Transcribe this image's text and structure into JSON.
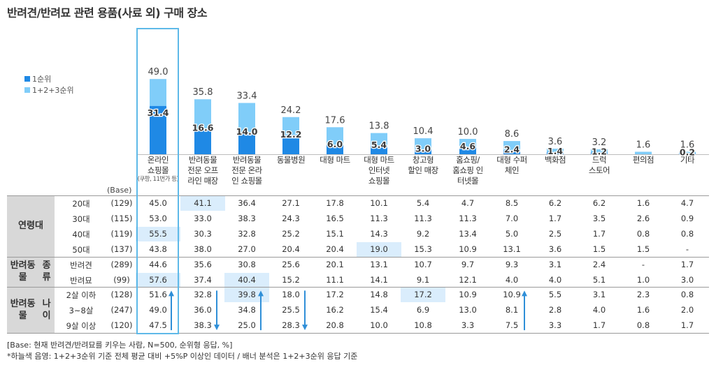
{
  "title": "반려견/반려묘 관련 용품(사료 외) 구매 장소",
  "legend": [
    {
      "label": "1순위",
      "color": "#1f89e5"
    },
    {
      "label": "1+2+3순위",
      "color": "#80cdf9"
    }
  ],
  "chart_data": {
    "type": "bar",
    "title": "반려견/반려묘 관련 용품(사료 외) 구매 장소",
    "categories": [
      {
        "lines": [
          "온라인",
          "쇼핑몰"
        ],
        "sub": "(쿠팡, 11번가 등)"
      },
      {
        "lines": [
          "반려동물",
          "전문 오프",
          "라인 매장"
        ]
      },
      {
        "lines": [
          "반려동물",
          "전문 온라",
          "인 쇼핑몰"
        ]
      },
      {
        "lines": [
          "동물병원"
        ]
      },
      {
        "lines": [
          "대형 마트"
        ]
      },
      {
        "lines": [
          "대형 마트",
          "인터넷",
          "쇼핑몰"
        ]
      },
      {
        "lines": [
          "창고형",
          "할인 매장"
        ]
      },
      {
        "lines": [
          "홈쇼핑/",
          "홈쇼핑 인",
          "터넷몰"
        ]
      },
      {
        "lines": [
          "대형 수퍼",
          "체인"
        ]
      },
      {
        "lines": [
          "백화점"
        ]
      },
      {
        "lines": [
          "드럭",
          "스토어"
        ]
      },
      {
        "lines": [
          "편의점"
        ]
      },
      {
        "lines": [
          "기타"
        ]
      }
    ],
    "series": [
      {
        "name": "1+2+3순위",
        "values": [
          49.0,
          35.8,
          33.4,
          24.2,
          17.6,
          13.8,
          10.4,
          10.0,
          8.6,
          3.6,
          3.2,
          1.6,
          1.6
        ],
        "labels": [
          "49.0",
          "35.8",
          "33.4",
          "24.2",
          "17.6",
          "13.8",
          "10.4",
          "10.0",
          "8.6",
          "3.6",
          "3.2",
          "1.6",
          "1.6"
        ]
      },
      {
        "name": "1순위",
        "values": [
          31.4,
          16.6,
          14.0,
          12.2,
          6.0,
          5.4,
          3.0,
          4.6,
          2.4,
          1.4,
          1.2,
          null,
          0.2
        ],
        "labels": [
          "31.4",
          "16.6",
          "14.0",
          "12.2",
          "6.0",
          "5.4",
          "3.0",
          "4.6",
          "2.4",
          "1.4",
          "1.2",
          "",
          "0.2"
        ]
      }
    ],
    "ylim": [
      0,
      60
    ]
  },
  "table": {
    "base_header": "(Base)",
    "groups": [
      {
        "name": "연령대",
        "lines": [
          "연령대"
        ],
        "rows": [
          0,
          1,
          2,
          3
        ]
      },
      {
        "name": "반려동물 종류",
        "lines": [
          "반려동물",
          "종류"
        ],
        "rows": [
          4,
          5
        ]
      },
      {
        "name": "반려동물 나이",
        "lines": [
          "반려동물",
          "나이"
        ],
        "rows": [
          6,
          7,
          8
        ]
      }
    ],
    "rows": [
      {
        "label": "20대",
        "base": "(129)",
        "values": [
          "45.0",
          "41.1",
          "36.4",
          "27.1",
          "17.8",
          "10.1",
          "5.4",
          "4.7",
          "8.5",
          "6.2",
          "6.2",
          "1.6",
          "4.7"
        ],
        "highlight": [
          1
        ]
      },
      {
        "label": "30대",
        "base": "(115)",
        "values": [
          "53.0",
          "33.0",
          "38.3",
          "24.3",
          "16.5",
          "11.3",
          "11.3",
          "11.3",
          "7.0",
          "1.7",
          "3.5",
          "2.6",
          "0.9"
        ],
        "highlight": []
      },
      {
        "label": "40대",
        "base": "(119)",
        "values": [
          "55.5",
          "30.3",
          "32.8",
          "25.2",
          "15.1",
          "14.3",
          "9.2",
          "13.4",
          "5.0",
          "2.5",
          "1.7",
          "0.8",
          "0.8"
        ],
        "highlight": [
          0
        ]
      },
      {
        "label": "50대",
        "base": "(137)",
        "values": [
          "43.8",
          "38.0",
          "27.0",
          "20.4",
          "20.4",
          "19.0",
          "15.3",
          "10.9",
          "13.1",
          "3.6",
          "1.5",
          "1.5",
          "-"
        ],
        "highlight": [
          5
        ]
      },
      {
        "label": "반려견",
        "base": "(289)",
        "values": [
          "44.6",
          "35.6",
          "30.8",
          "25.6",
          "20.1",
          "13.1",
          "10.7",
          "9.7",
          "9.3",
          "3.1",
          "2.4",
          "-",
          "1.7"
        ],
        "highlight": []
      },
      {
        "label": "반려묘",
        "base": "(99)",
        "values": [
          "57.6",
          "37.4",
          "40.4",
          "15.2",
          "11.1",
          "14.1",
          "9.1",
          "12.1",
          "4.0",
          "4.0",
          "5.1",
          "1.0",
          "3.0"
        ],
        "highlight": [
          0,
          2
        ]
      },
      {
        "label": "2살 이하",
        "base": "(128)",
        "values": [
          "51.6",
          "32.8",
          "39.8",
          "18.0",
          "17.2",
          "14.8",
          "17.2",
          "10.9",
          "10.9",
          "5.5",
          "3.1",
          "2.3",
          "0.8"
        ],
        "highlight": [
          2,
          6
        ]
      },
      {
        "label": "3~8살",
        "base": "(247)",
        "values": [
          "49.0",
          "36.0",
          "34.8",
          "25.5",
          "16.2",
          "15.4",
          "6.9",
          "13.0",
          "8.1",
          "2.8",
          "4.0",
          "1.6",
          "2.0"
        ],
        "highlight": []
      },
      {
        "label": "9살 이상",
        "base": "(120)",
        "values": [
          "47.5",
          "38.3",
          "25.0",
          "28.3",
          "20.8",
          "10.0",
          "10.8",
          "3.3",
          "7.5",
          "3.3",
          "1.7",
          "0.8",
          "1.7"
        ],
        "highlight": []
      }
    ],
    "trend_arrows": [
      {
        "column": 0,
        "direction": "up"
      },
      {
        "column": 1,
        "direction": "down"
      },
      {
        "column": 2,
        "direction": "up"
      },
      {
        "column": 3,
        "direction": "down"
      },
      {
        "column": 8,
        "direction": "up"
      }
    ]
  },
  "notes": [
    "[Base: 현재 반려견/반려묘를 키우는 사람, N=500, 순위형 응답, %]",
    "*하늘색 음영: 1+2+3순위 기준 전체 평균 대비 +5%P 이상인 데이터 / 배너 분석은 1+2+3순위 응답 기준"
  ]
}
